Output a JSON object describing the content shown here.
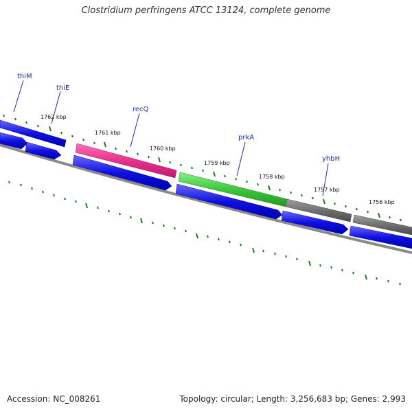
{
  "title": "Clostridium perfringens ATCC 13124, complete genome",
  "accession_text": "Accession: NC_008261",
  "summary_text": "Topology: circular; Length: 3,256,683 bp; Genes: 2,993",
  "kbp_labels": [
    "1762 kbp",
    "1761 kbp",
    "1760 kbp",
    "1759 kbp",
    "1758 kbp",
    "1757 kbp",
    "1756 kbp"
  ],
  "gene_labels": [
    "thiM",
    "thiE",
    "recQ",
    "prkA",
    "yhbH"
  ],
  "colors": {
    "cds_forward": "#1010e0",
    "recQ": "#e8308c",
    "prkA": "#3cc83c",
    "gray_gene": "#707070",
    "backbone": "#7a7a7a",
    "tick": "#1a7a1a"
  }
}
